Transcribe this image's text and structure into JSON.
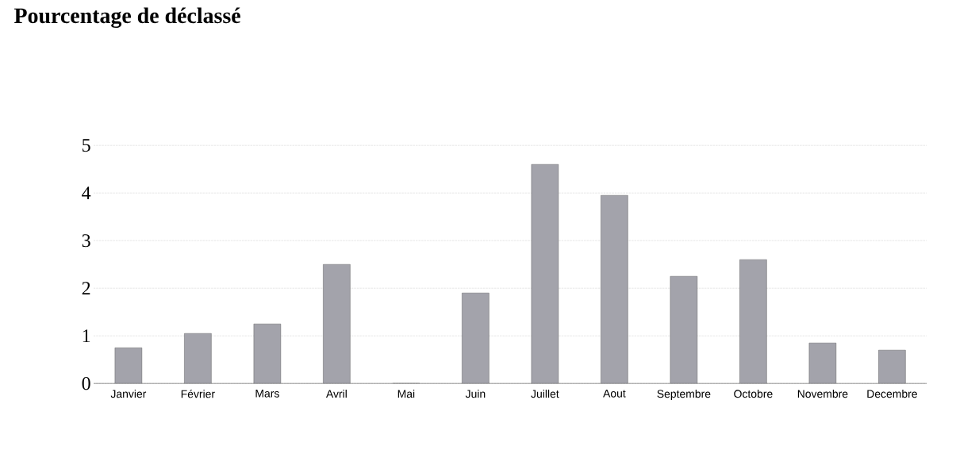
{
  "chart_data": {
    "type": "bar",
    "title": "Pourcentage de déclassé",
    "categories": [
      "Janvier",
      "Février",
      "Mars",
      "Avril",
      "Mai",
      "Juin",
      "Juillet",
      "Aout",
      "Septembre",
      "Octobre",
      "Novembre",
      "Decembre"
    ],
    "values": [
      0.75,
      1.05,
      1.25,
      2.5,
      0,
      1.9,
      4.6,
      3.95,
      2.25,
      2.6,
      0.85,
      0.7
    ],
    "color": "#a3a3ab",
    "ylim": [
      0,
      5
    ],
    "yticks": [
      0,
      1,
      2,
      3,
      4,
      5
    ],
    "grid": "y"
  }
}
